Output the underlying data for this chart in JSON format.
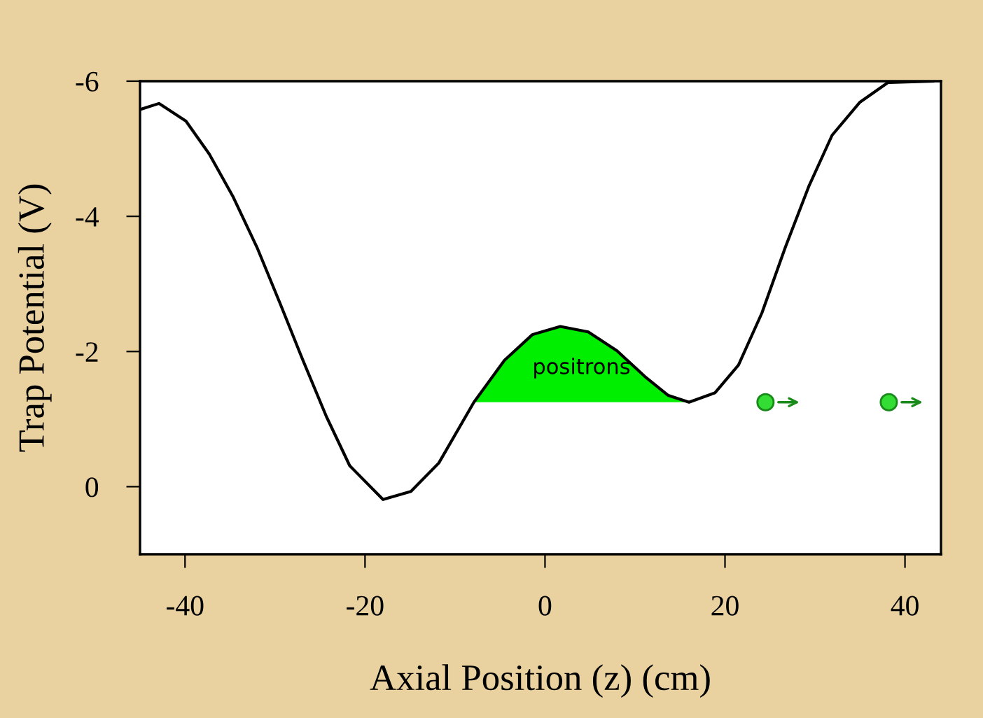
{
  "chart_data": {
    "type": "line",
    "xlabel": "Axial Position (z) (cm)",
    "ylabel": "Trap Potential (V)",
    "xlim": [
      -45,
      44
    ],
    "xticks": [
      -40,
      -20,
      0,
      20,
      40
    ],
    "ylim": [
      1,
      -6
    ],
    "yticks": [
      -6,
      -4,
      -2,
      0
    ],
    "grid": false,
    "legend": false,
    "marker": "none",
    "line_style": "solid",
    "series": [
      {
        "color": "#000000",
        "x": [
          -45,
          -42.9,
          -39.9,
          -37.3,
          -34.7,
          -32.0,
          -29.4,
          -26.9,
          -24.3,
          -21.7,
          -18.0,
          -14.9,
          -11.8,
          -7.9,
          -4.5,
          -1.4,
          1.7,
          4.8,
          8.0,
          11.1,
          13.7,
          16.0,
          18.9,
          21.5,
          24.1,
          26.7,
          29.3,
          31.9,
          35.0,
          38.1,
          43.1
        ],
        "values": [
          -5.58,
          -5.67,
          -5.41,
          -4.92,
          -4.3,
          -3.54,
          -2.7,
          -1.87,
          -1.04,
          -0.31,
          0.19,
          0.07,
          -0.35,
          -1.25,
          -1.87,
          -2.25,
          -2.37,
          -2.29,
          -2.01,
          -1.63,
          -1.35,
          -1.25,
          -1.39,
          -1.8,
          -2.57,
          -3.54,
          -4.44,
          -5.2,
          -5.69,
          -5.98,
          -6
        ]
      },
      {
        "type": "area",
        "color": "#00ee00",
        "x": [
          -7.9,
          -4.5,
          -1.4,
          1.7,
          4.8,
          8.0,
          11.1,
          13.7,
          16.0
        ],
        "values": [
          -1.25,
          -1.87,
          -2.25,
          -2.37,
          -2.29,
          -2.01,
          -1.63,
          -1.35,
          -1.25
        ]
      },
      {
        "type": "scatter",
        "color": "#33dd33",
        "x": [
          24.5,
          38.2
        ],
        "values": [
          -1.25,
          -1.25
        ],
        "marker": "circle"
      }
    ],
    "annotations": [
      "positrons"
    ]
  }
}
